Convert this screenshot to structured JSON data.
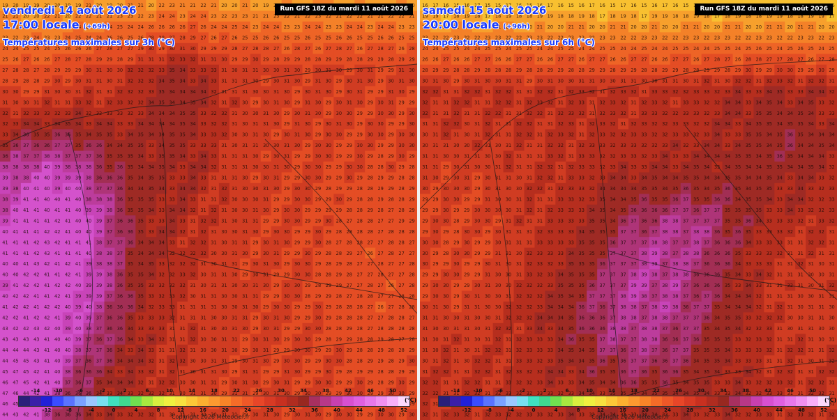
{
  "panels": [
    {
      "date": "vendredi 14 août 2026",
      "time": "17:00 locale",
      "lead": "(+69h)",
      "subtitle": "Températures maximales sur 3h (°C)",
      "run": "Run GFS 18Z du mardi 11 août 2026",
      "copyright": "Copyright 2026 Meteociel.fr",
      "field": {
        "cols": 40,
        "rows": 39,
        "base": 30,
        "north_cool": 10,
        "north_rows": 6,
        "hot_spots": [
          {
            "cx": 4,
            "cy": 23,
            "rx": 9,
            "ry": 16,
            "amp": 12
          },
          {
            "cx": 17,
            "cy": 9,
            "rx": 4,
            "ry": 10,
            "amp": 4
          },
          {
            "cx": 0,
            "cy": 36,
            "rx": 4,
            "ry": 6,
            "amp": 11
          }
        ],
        "cool_spots": [
          {
            "cx": 36,
            "cy": 25,
            "rx": 6,
            "ry": 10,
            "amp": 3
          },
          {
            "cx": 2,
            "cy": 6,
            "rx": 8,
            "ry": 6,
            "amp": 6
          }
        ]
      }
    },
    {
      "date": "samedi 15 août 2026",
      "time": "20:00 locale",
      "lead": "(+96h)",
      "subtitle": "Températures maximales sur 6h (°C)",
      "run": "Run GFS 18Z du mardi 11 août 2026",
      "copyright": "Copyright 2026 Meteociel.fr",
      "field": {
        "cols": 40,
        "rows": 39,
        "base": 32,
        "north_cool": 16,
        "north_rows": 8,
        "hot_spots": [
          {
            "cx": 21,
            "cy": 28,
            "rx": 9,
            "ry": 9,
            "amp": 6
          },
          {
            "cx": 26,
            "cy": 20,
            "rx": 7,
            "ry": 5,
            "amp": 3
          },
          {
            "cx": 34,
            "cy": 12,
            "rx": 6,
            "ry": 6,
            "amp": 3
          }
        ],
        "cool_spots": [
          {
            "cx": 3,
            "cy": 22,
            "rx": 8,
            "ry": 10,
            "amp": 3
          },
          {
            "cx": 36,
            "cy": 27,
            "rx": 5,
            "ry": 7,
            "amp": 2
          }
        ]
      }
    }
  ],
  "legend": {
    "unit": "(°C)",
    "upper_labels": [
      "-14",
      "-10",
      "-6",
      "-2",
      "2",
      "6",
      "10",
      "14",
      "18",
      "22",
      "26",
      "30",
      "34",
      "38",
      "42",
      "46",
      "50"
    ],
    "lower_labels": [
      "-12",
      "-8",
      "-4",
      "0",
      "4",
      "8",
      "12",
      "16",
      "20",
      "24",
      "28",
      "32",
      "36",
      "40",
      "44",
      "48",
      "52"
    ],
    "colors": [
      "#2a1f7a",
      "#3a1fa8",
      "#2020d8",
      "#3a4cff",
      "#5a73ff",
      "#7aa2ff",
      "#9bc8ff",
      "#78e0f0",
      "#40e0c0",
      "#40d890",
      "#70e050",
      "#a8e840",
      "#d8f040",
      "#f0f040",
      "#f8e040",
      "#fcc838",
      "#fcb030",
      "#fc9a30",
      "#f88428",
      "#f46c28",
      "#ee5828",
      "#e84628",
      "#d83a24",
      "#c83020",
      "#b02c20",
      "#982820",
      "#a83060",
      "#b83888",
      "#c840b0",
      "#d850d0",
      "#e060e0",
      "#e878ea",
      "#f090f0",
      "#f8b0f8",
      "#fcd8fc"
    ]
  }
}
